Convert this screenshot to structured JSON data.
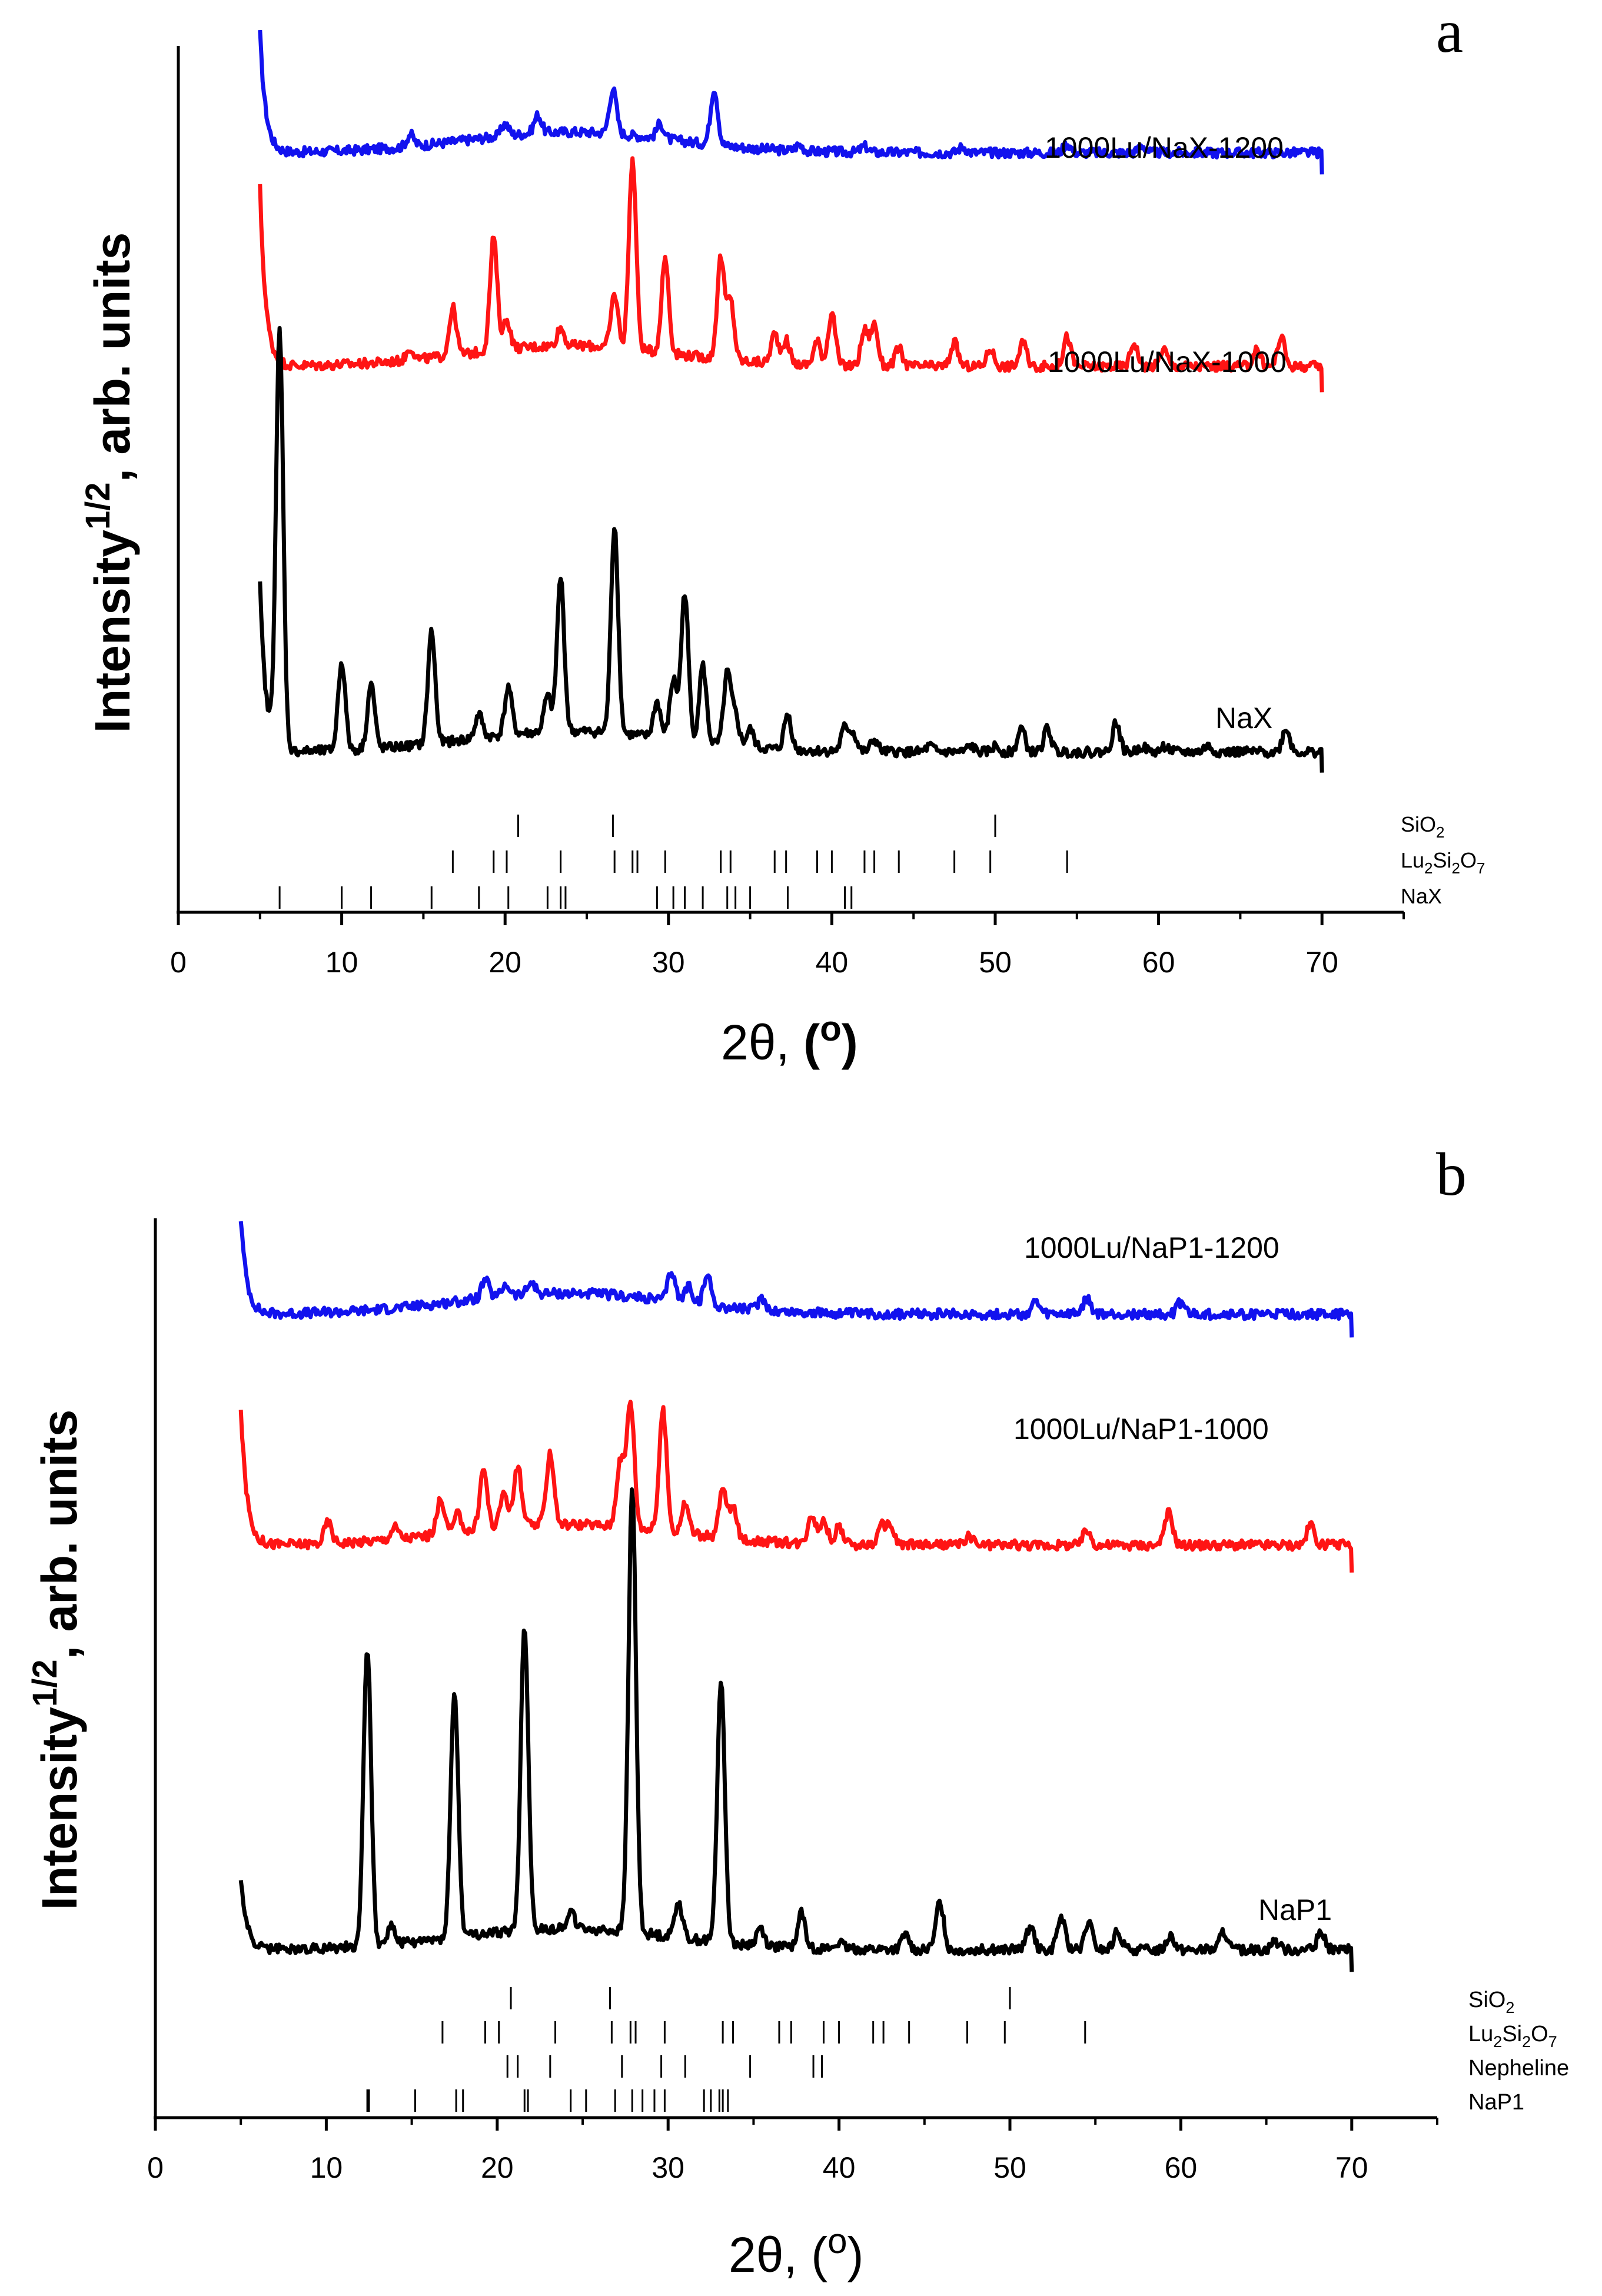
{
  "figure": {
    "panel_a_letter": "a",
    "panel_b_letter": "b"
  },
  "colors": {
    "blue": "#1212ee",
    "red": "#ff1414",
    "black": "#000000"
  },
  "chart_data": [
    {
      "panel": "a",
      "type": "line",
      "xlabel_prefix": "2θ, ",
      "xlabel_unit": "(o)",
      "ylabel_main": "Intensity",
      "ylabel_sup": "1/2",
      "ylabel_rest": ", arb. units",
      "xlim": [
        0,
        75
      ],
      "xticks": [
        "0",
        "10",
        "20",
        "30",
        "40",
        "50",
        "60",
        "70"
      ],
      "ylim": [
        -1.6,
        13.0
      ],
      "series": [
        {
          "name": "1000Lu/NaX-1200",
          "color_key": "blue",
          "baseline": 11.2,
          "start_spike": 2.0,
          "peaks": [
            [
              14.2,
              0.2
            ],
            [
              22.0,
              0.3
            ],
            [
              26.6,
              0.75
            ],
            [
              32.8,
              0.95
            ],
            [
              20.0,
              0.2
            ],
            [
              29.5,
              0.25
            ],
            [
              38.0,
              0.1
            ],
            [
              42.0,
              0.1
            ],
            [
              48.0,
              0.1
            ],
            [
              54.4,
              0.15
            ],
            [
              59.0,
              0.12
            ]
          ]
        },
        {
          "name": "1000Lu/NaX-1000",
          "color_key": "red",
          "baseline": 7.6,
          "start_spike": 3.0,
          "peaks": [
            [
              14.2,
              0.2
            ],
            [
              16.8,
              0.8
            ],
            [
              19.3,
              1.9
            ],
            [
              20.1,
              0.5
            ],
            [
              23.4,
              0.3
            ],
            [
              26.7,
              0.9
            ],
            [
              27.8,
              3.2
            ],
            [
              29.8,
              1.6
            ],
            [
              33.2,
              1.7
            ],
            [
              33.8,
              1.0
            ],
            [
              36.5,
              0.5
            ],
            [
              37.2,
              0.4
            ],
            [
              39.1,
              0.4
            ],
            [
              40.0,
              0.9
            ],
            [
              42.0,
              0.6
            ],
            [
              42.6,
              0.7
            ],
            [
              44.1,
              0.3
            ],
            [
              47.5,
              0.4
            ],
            [
              49.7,
              0.3
            ],
            [
              51.7,
              0.4
            ],
            [
              54.4,
              0.5
            ],
            [
              58.5,
              0.4
            ],
            [
              60.3,
              0.3
            ],
            [
              66.0,
              0.3
            ],
            [
              67.5,
              0.5
            ]
          ]
        },
        {
          "name": "NaX",
          "color_key": "black",
          "baseline": 1.1,
          "start_spike": 2.8,
          "peaks": [
            [
              6.2,
              7.0
            ],
            [
              10.0,
              1.5
            ],
            [
              11.8,
              1.1
            ],
            [
              15.5,
              1.9
            ],
            [
              18.4,
              0.4
            ],
            [
              20.2,
              0.8
            ],
            [
              22.6,
              0.6
            ],
            [
              23.4,
              2.6
            ],
            [
              26.7,
              3.5
            ],
            [
              29.3,
              0.6
            ],
            [
              30.3,
              1.0
            ],
            [
              31.0,
              2.5
            ],
            [
              32.1,
              1.3
            ],
            [
              33.6,
              1.2
            ],
            [
              34.1,
              0.5
            ],
            [
              35.0,
              0.3
            ],
            [
              37.3,
              0.6
            ],
            [
              40.8,
              0.4
            ],
            [
              41.3,
              0.3
            ],
            [
              42.6,
              0.2
            ],
            [
              46.0,
              0.1
            ],
            [
              48.5,
              0.1
            ],
            [
              50.0,
              0.1
            ],
            [
              51.6,
              0.4
            ],
            [
              53.2,
              0.4
            ],
            [
              57.4,
              0.5
            ],
            [
              59.0,
              0.1
            ],
            [
              60.4,
              0.1
            ],
            [
              63.0,
              0.1
            ],
            [
              67.8,
              0.4
            ]
          ]
        }
      ],
      "references": [
        {
          "name": "SiO2",
          "label_main": "SiO",
          "label_sub": "2",
          "positions": [
            20.8,
            26.6,
            50.0
          ]
        },
        {
          "name": "Lu2Si2O7",
          "label_main": "Lu",
          "label_sub": "2",
          "label_main2": "Si",
          "label_sub2": "2",
          "label_main3": "O",
          "label_sub3": "7",
          "positions": [
            16.8,
            19.3,
            20.1,
            23.4,
            26.7,
            27.8,
            28.1,
            29.8,
            33.2,
            33.8,
            36.5,
            37.2,
            39.1,
            40.0,
            42.0,
            42.6,
            44.1,
            47.5,
            49.7,
            54.4
          ]
        },
        {
          "name": "NaX",
          "label_main": "NaX",
          "positions": [
            6.2,
            10.0,
            11.8,
            15.5,
            18.4,
            20.2,
            22.6,
            23.4,
            23.7,
            29.3,
            30.3,
            31.0,
            32.1,
            33.6,
            34.1,
            35.0,
            37.3,
            40.8,
            41.2
          ]
        }
      ]
    },
    {
      "panel": "b",
      "type": "line",
      "xlabel_prefix": "2θ, ",
      "xlabel_unit": "(o)",
      "ylabel_main": "Intensity",
      "ylabel_sup": "1/2",
      "ylabel_rest": ", arb. units",
      "xlim": [
        0,
        75
      ],
      "xticks": [
        "0",
        "10",
        "20",
        "30",
        "40",
        "50",
        "60",
        "70"
      ],
      "ylim": [
        -2.0,
        13.0
      ],
      "series": [
        {
          "name": "1000Lu/NaP1-1200",
          "color_key": "blue",
          "baseline": 11.4,
          "start_spike": 1.6,
          "peaks": [
            [
              19.3,
              0.3
            ],
            [
              20.5,
              0.2
            ],
            [
              22.0,
              0.2
            ],
            [
              30.2,
              0.5
            ],
            [
              31.2,
              0.3
            ],
            [
              32.3,
              0.5
            ],
            [
              35.5,
              0.2
            ],
            [
              51.5,
              0.2
            ],
            [
              54.5,
              0.25
            ],
            [
              60.0,
              0.2
            ]
          ]
        },
        {
          "name": "1000Lu/NaP1-1000",
          "color_key": "red",
          "baseline": 7.55,
          "start_spike": 2.3,
          "peaks": [
            [
              10.1,
              0.35
            ],
            [
              14.0,
              0.2
            ],
            [
              16.7,
              0.6
            ],
            [
              17.7,
              0.3
            ],
            [
              19.2,
              1.0
            ],
            [
              20.4,
              0.6
            ],
            [
              21.2,
              1.0
            ],
            [
              23.1,
              1.2
            ],
            [
              27.2,
              1.1
            ],
            [
              27.8,
              2.1
            ],
            [
              29.7,
              2.0
            ],
            [
              31.0,
              0.5
            ],
            [
              33.2,
              0.8
            ],
            [
              33.8,
              0.5
            ],
            [
              38.4,
              0.5
            ],
            [
              39.1,
              0.4
            ],
            [
              40.0,
              0.3
            ],
            [
              42.5,
              0.3
            ],
            [
              43.0,
              0.3
            ],
            [
              47.6,
              0.15
            ],
            [
              54.5,
              0.25
            ],
            [
              59.3,
              0.55
            ],
            [
              67.6,
              0.35
            ]
          ]
        },
        {
          "name": "NaP1",
          "color_key": "black",
          "baseline": 0.8,
          "start_spike": 1.2,
          "peaks": [
            [
              12.4,
              5.0
            ],
            [
              13.8,
              0.3
            ],
            [
              17.5,
              4.1
            ],
            [
              21.6,
              5.1
            ],
            [
              24.3,
              0.3
            ],
            [
              27.9,
              7.4
            ],
            [
              30.6,
              0.6
            ],
            [
              33.1,
              4.4
            ],
            [
              35.4,
              0.3
            ],
            [
              37.8,
              0.6
            ],
            [
              40.0,
              0.1
            ],
            [
              43.9,
              0.25
            ],
            [
              45.9,
              0.8
            ],
            [
              51.2,
              0.4
            ],
            [
              53.0,
              0.55
            ],
            [
              54.6,
              0.45
            ],
            [
              56.3,
              0.3
            ],
            [
              59.4,
              0.25
            ],
            [
              62.5,
              0.3
            ],
            [
              65.5,
              0.15
            ],
            [
              68.2,
              0.3
            ]
          ]
        }
      ],
      "references": [
        {
          "name": "SiO2",
          "label_main": "SiO",
          "label_sub": "2",
          "positions": [
            20.8,
            26.6,
            50.0
          ]
        },
        {
          "name": "Lu2Si2O7",
          "label_main": "Lu",
          "label_sub": "2",
          "label_main2": "Si",
          "label_sub2": "2",
          "label_main3": "O",
          "label_sub3": "7",
          "positions": [
            16.8,
            19.3,
            20.1,
            23.4,
            26.7,
            27.8,
            28.1,
            29.8,
            33.2,
            33.8,
            36.5,
            37.2,
            39.1,
            40.0,
            42.0,
            42.6,
            44.1,
            47.5,
            49.7,
            54.4
          ]
        },
        {
          "name": "Nepheline",
          "label_main": "Nepheline",
          "positions": [
            20.6,
            21.2,
            23.1,
            27.3,
            29.6,
            31.0,
            34.8,
            38.5,
            39.0
          ]
        },
        {
          "name": "NaP1",
          "label_main": "NaP1",
          "positions": [
            12.4,
            12.5,
            15.2,
            17.6,
            18.0,
            21.6,
            21.8,
            24.3,
            25.2,
            26.9,
            27.9,
            28.5,
            29.2,
            29.8,
            32.1,
            32.5,
            33.0,
            33.2,
            33.5
          ]
        }
      ]
    }
  ]
}
